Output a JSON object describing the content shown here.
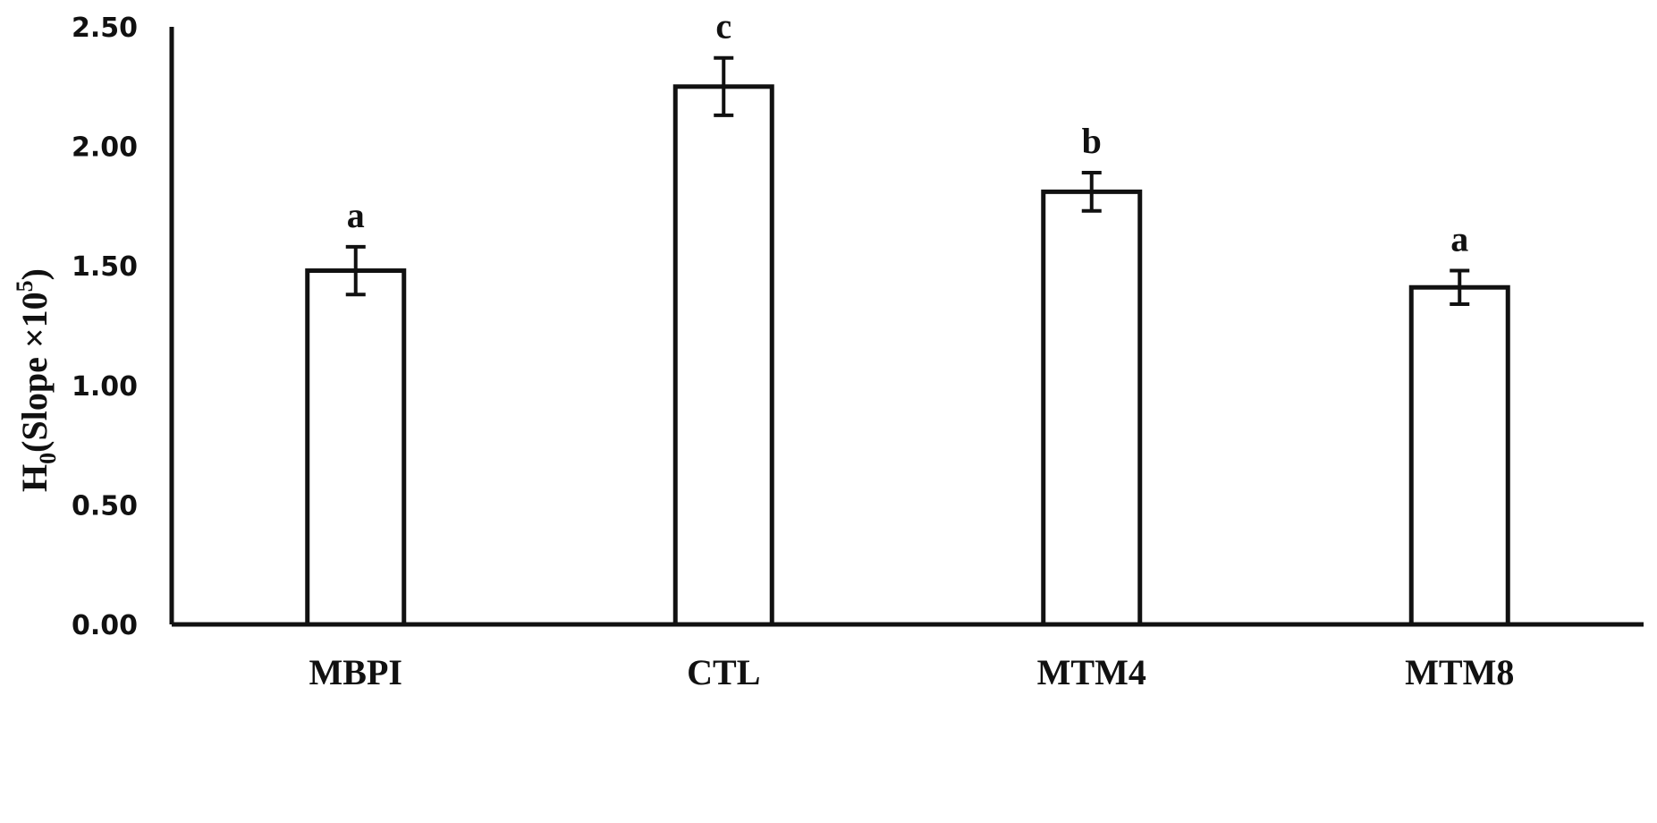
{
  "chart_data": {
    "type": "bar",
    "title": "",
    "xlabel": "",
    "ylabel": {
      "main": "H",
      "main_sub": "0",
      "rest": "(Slope ×10",
      "rest_sup": "5",
      "close": ")"
    },
    "ylim": [
      0,
      2.5
    ],
    "yticks": [
      "0.00",
      "0.50",
      "1.00",
      "1.50",
      "2.00",
      "2.50"
    ],
    "ytick_values": [
      0,
      0.5,
      1.0,
      1.5,
      2.0,
      2.5
    ],
    "grid": false,
    "legend": "none",
    "categories": [
      "MBPI",
      "CTL",
      "MTM4",
      "MTM8"
    ],
    "values": [
      1.48,
      2.25,
      1.81,
      1.41
    ],
    "errors": [
      0.1,
      0.12,
      0.08,
      0.07
    ],
    "significance": [
      "a",
      "c",
      "b",
      "a"
    ],
    "colors": {
      "bar_fill": "#ffffff",
      "stroke": "#111111"
    }
  }
}
